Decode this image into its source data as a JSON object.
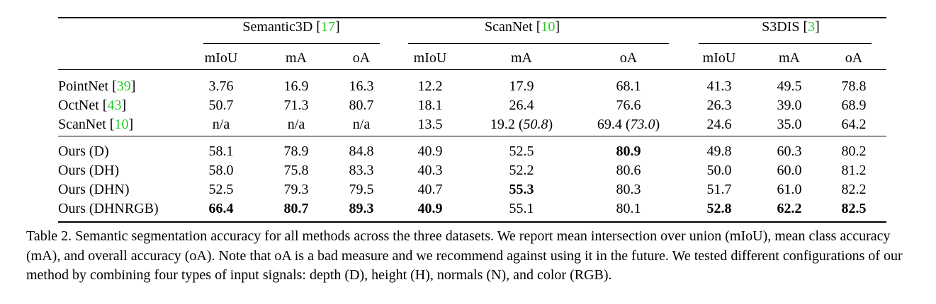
{
  "groups": [
    {
      "name": "Semantic3D",
      "ref": "17"
    },
    {
      "name": "ScanNet",
      "ref": "10"
    },
    {
      "name": "S3DIS",
      "ref": "3"
    }
  ],
  "subheaders": [
    "mIoU",
    "mA",
    "oA",
    "mIoU",
    "mA",
    "oA",
    "mIoU",
    "mA",
    "oA"
  ],
  "baseline_rows": [
    {
      "method": "PointNet",
      "ref": "39",
      "cells": [
        {
          "v": "3.76"
        },
        {
          "v": "16.9"
        },
        {
          "v": "16.3"
        },
        {
          "v": "12.2"
        },
        {
          "v": "17.9"
        },
        {
          "v": "68.1"
        },
        {
          "v": "41.3"
        },
        {
          "v": "49.5"
        },
        {
          "v": "78.8"
        }
      ]
    },
    {
      "method": "OctNet",
      "ref": "43",
      "cells": [
        {
          "v": "50.7"
        },
        {
          "v": "71.3"
        },
        {
          "v": "80.7"
        },
        {
          "v": "18.1"
        },
        {
          "v": "26.4"
        },
        {
          "v": "76.6"
        },
        {
          "v": "26.3"
        },
        {
          "v": "39.0"
        },
        {
          "v": "68.9"
        }
      ]
    },
    {
      "method": "ScanNet",
      "ref": "10",
      "cells": [
        {
          "v": "n/a"
        },
        {
          "v": "n/a"
        },
        {
          "v": "n/a"
        },
        {
          "v": "13.5"
        },
        {
          "v": "19.2",
          "alt": "50.8"
        },
        {
          "v": "69.4",
          "alt": "73.0"
        },
        {
          "v": "24.6"
        },
        {
          "v": "35.0"
        },
        {
          "v": "64.2"
        }
      ]
    }
  ],
  "ours_rows": [
    {
      "method": "Ours (D)",
      "cells": [
        {
          "v": "58.1"
        },
        {
          "v": "78.9"
        },
        {
          "v": "84.8"
        },
        {
          "v": "40.9"
        },
        {
          "v": "52.5"
        },
        {
          "v": "80.9",
          "bold": true
        },
        {
          "v": "49.8"
        },
        {
          "v": "60.3"
        },
        {
          "v": "80.2"
        }
      ]
    },
    {
      "method": "Ours (DH)",
      "cells": [
        {
          "v": "58.0"
        },
        {
          "v": "75.8"
        },
        {
          "v": "83.3"
        },
        {
          "v": "40.3"
        },
        {
          "v": "52.2"
        },
        {
          "v": "80.6"
        },
        {
          "v": "50.0"
        },
        {
          "v": "60.0"
        },
        {
          "v": "81.2"
        }
      ]
    },
    {
      "method": "Ours (DHN)",
      "cells": [
        {
          "v": "52.5"
        },
        {
          "v": "79.3"
        },
        {
          "v": "79.5"
        },
        {
          "v": "40.7"
        },
        {
          "v": "55.3",
          "bold": true
        },
        {
          "v": "80.3"
        },
        {
          "v": "51.7"
        },
        {
          "v": "61.0"
        },
        {
          "v": "82.2"
        }
      ]
    },
    {
      "method": "Ours (DHNRGB)",
      "cells": [
        {
          "v": "66.4",
          "bold": true
        },
        {
          "v": "80.7",
          "bold": true
        },
        {
          "v": "89.3",
          "bold": true
        },
        {
          "v": "40.9",
          "bold": true
        },
        {
          "v": "55.1"
        },
        {
          "v": "80.1"
        },
        {
          "v": "52.8",
          "bold": true
        },
        {
          "v": "62.2",
          "bold": true
        },
        {
          "v": "82.5",
          "bold": true
        }
      ]
    }
  ],
  "caption": "Table 2. Semantic segmentation accuracy for all methods across the three datasets. We report mean intersection over union (mIoU), mean class accuracy (mA), and overall accuracy (oA). Note that oA is a bad measure and we recommend against using it in the future. We tested different configurations of our method by combining four types of input signals: depth (D), height (H), normals (N), and color (RGB).",
  "colors": {
    "ref": "#22cc22",
    "text": "#000000"
  }
}
